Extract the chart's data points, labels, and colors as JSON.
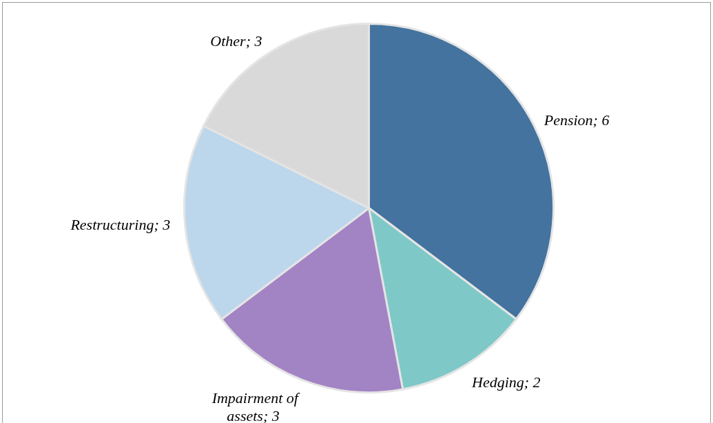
{
  "chart_data": {
    "type": "pie",
    "categories": [
      "Pension",
      "Hedging",
      "Impairment of assets",
      "Restructuring",
      "Other"
    ],
    "values": [
      6,
      2,
      3,
      3,
      3
    ],
    "colors": [
      "#43739e",
      "#7ec8c8",
      "#a283c4",
      "#bcd6ec",
      "#d9d9d9"
    ],
    "value_labels": [
      "; 6",
      "; 2",
      "; 3",
      "; 3",
      "; 3"
    ],
    "legend": false
  }
}
